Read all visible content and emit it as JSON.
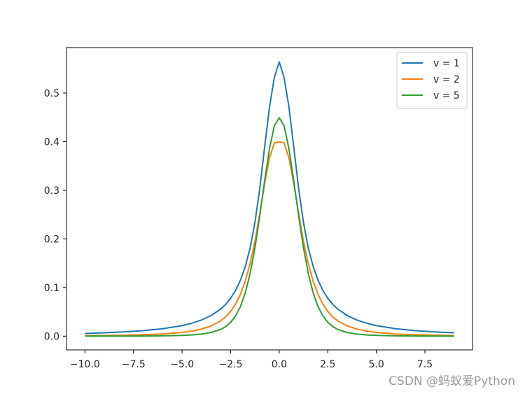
{
  "watermark": "CSDN @蚂蚁爱Python",
  "chart_data": {
    "type": "line",
    "title": "",
    "xlabel": "",
    "ylabel": "",
    "xlim": [
      -10.95,
      9.95
    ],
    "ylim": [
      -0.0283,
      0.5935
    ],
    "xticks": [
      -10.0,
      -7.5,
      -5.0,
      -2.5,
      0.0,
      2.5,
      5.0,
      7.5
    ],
    "xtick_labels": [
      "−10.0",
      "−7.5",
      "−5.0",
      "−2.5",
      "0.0",
      "2.5",
      "5.0",
      "7.5"
    ],
    "yticks": [
      0.0,
      0.1,
      0.2,
      0.3,
      0.4,
      0.5
    ],
    "ytick_labels": [
      "0.0",
      "0.1",
      "0.2",
      "0.3",
      "0.4",
      "0.5"
    ],
    "grid": false,
    "legend_position": "top-right",
    "x": [
      -10,
      -9,
      -8,
      -7,
      -6,
      -5,
      -4.5,
      -4,
      -3.5,
      -3,
      -2.75,
      -2.5,
      -2.25,
      -2,
      -1.75,
      -1.5,
      -1.25,
      -1,
      -0.75,
      -0.5,
      -0.25,
      0,
      0.25,
      0.5,
      0.75,
      1,
      1.25,
      1.5,
      1.75,
      2,
      2.25,
      2.5,
      2.75,
      3,
      3.5,
      4,
      4.5,
      5,
      6,
      7,
      8,
      9
    ],
    "series": [
      {
        "name": "v = 1",
        "color": "#1f77b4",
        "values": [
          0.0056,
          0.0069,
          0.0087,
          0.0113,
          0.0152,
          0.0217,
          0.0266,
          0.0332,
          0.0424,
          0.0561,
          0.0657,
          0.078,
          0.0939,
          0.1148,
          0.1428,
          0.1809,
          0.2335,
          0.3037,
          0.3889,
          0.4714,
          0.5321,
          0.5642,
          0.5321,
          0.4714,
          0.3889,
          0.3037,
          0.2335,
          0.1809,
          0.1428,
          0.1148,
          0.0939,
          0.078,
          0.0657,
          0.0561,
          0.0424,
          0.0332,
          0.0266,
          0.0217,
          0.0152,
          0.0113,
          0.0087,
          0.0069
        ]
      },
      {
        "name": "v = 2",
        "color": "#ff7f0e",
        "values": [
          0.001,
          0.0013,
          0.0019,
          0.0028,
          0.0044,
          0.0077,
          0.0104,
          0.0145,
          0.021,
          0.0318,
          0.04,
          0.051,
          0.0658,
          0.0858,
          0.1128,
          0.1487,
          0.1953,
          0.2522,
          0.3136,
          0.3663,
          0.3975,
          0.4,
          0.3975,
          0.3663,
          0.3136,
          0.2522,
          0.1953,
          0.1487,
          0.1128,
          0.0858,
          0.0658,
          0.051,
          0.04,
          0.0318,
          0.021,
          0.0145,
          0.0104,
          0.0077,
          0.0044,
          0.0028,
          0.0019,
          0.0013
        ]
      },
      {
        "name": "v = 5",
        "color": "#2ca02c",
        "values": [
          0.0001,
          0.0001,
          0.0002,
          0.0003,
          0.0006,
          0.0015,
          0.0025,
          0.0042,
          0.0075,
          0.0141,
          0.0199,
          0.0285,
          0.0414,
          0.0606,
          0.0886,
          0.1283,
          0.1814,
          0.2473,
          0.3193,
          0.3855,
          0.4328,
          0.4491,
          0.4328,
          0.3855,
          0.3193,
          0.2473,
          0.1814,
          0.1283,
          0.0886,
          0.0606,
          0.0414,
          0.0285,
          0.0199,
          0.0141,
          0.0075,
          0.0042,
          0.0025,
          0.0015,
          0.0006,
          0.0003,
          0.0002,
          0.0001
        ]
      }
    ]
  }
}
